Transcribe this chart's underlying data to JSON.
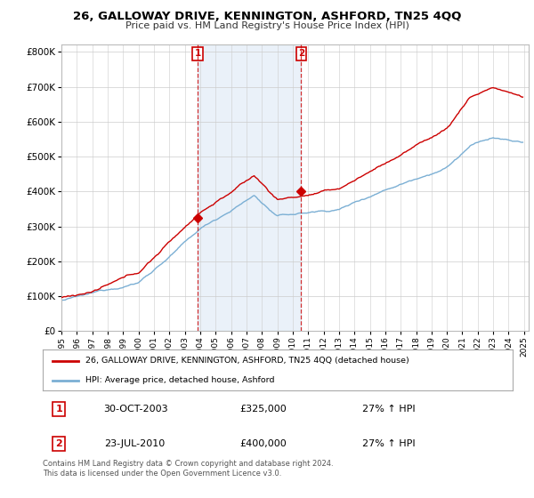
{
  "title": "26, GALLOWAY DRIVE, KENNINGTON, ASHFORD, TN25 4QQ",
  "subtitle": "Price paid vs. HM Land Registry's House Price Index (HPI)",
  "ylim": [
    0,
    820000
  ],
  "hpi_color": "#7bafd4",
  "price_color": "#cc0000",
  "fill_color": "#dce9f5",
  "marker1_year": 2003.83,
  "marker1_price": 325000,
  "marker2_year": 2010.55,
  "marker2_price": 400000,
  "legend_entry1": "26, GALLOWAY DRIVE, KENNINGTON, ASHFORD, TN25 4QQ (detached house)",
  "legend_entry2": "HPI: Average price, detached house, Ashford",
  "table_row1": [
    "1",
    "30-OCT-2003",
    "£325,000",
    "27% ↑ HPI"
  ],
  "table_row2": [
    "2",
    "23-JUL-2010",
    "£400,000",
    "27% ↑ HPI"
  ],
  "footnote": "Contains HM Land Registry data © Crown copyright and database right 2024.\nThis data is licensed under the Open Government Licence v3.0.",
  "bg_color": "#ffffff",
  "x_start_year": 1995,
  "x_end_year": 2025
}
